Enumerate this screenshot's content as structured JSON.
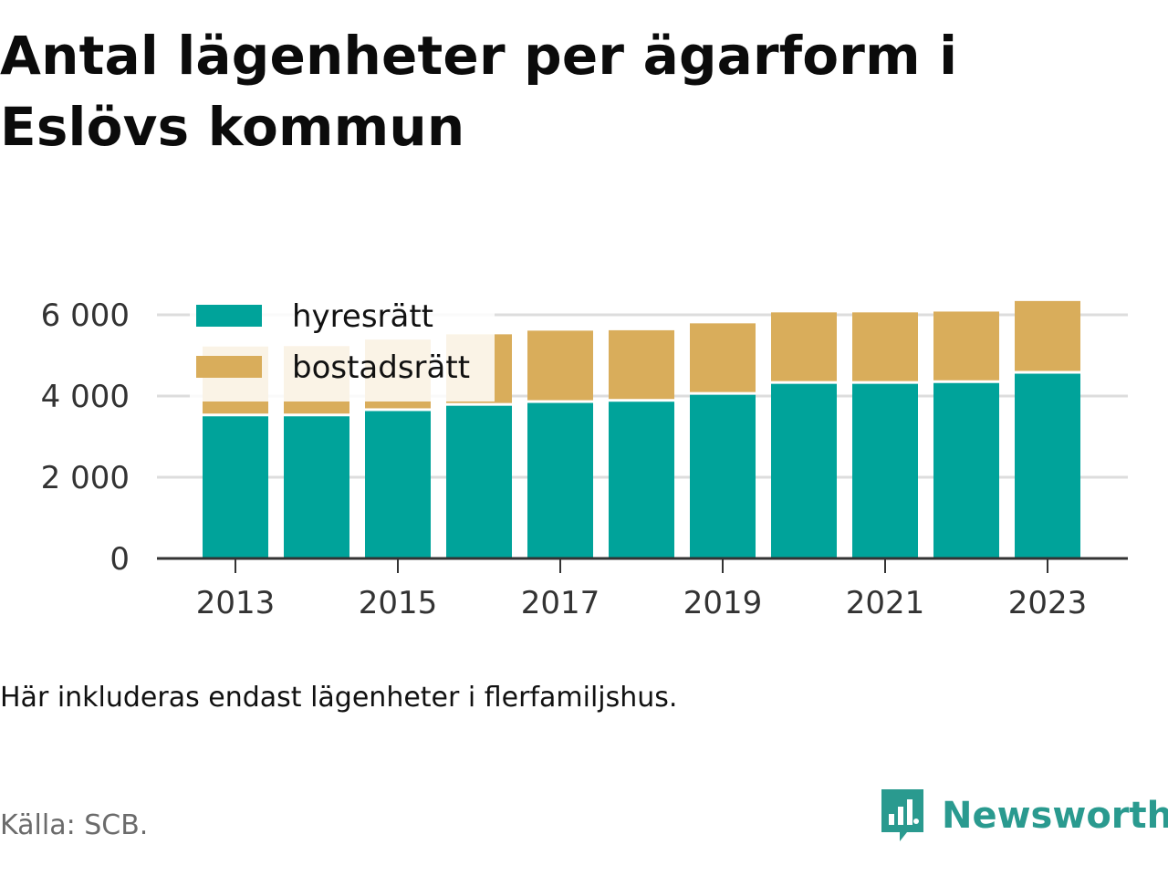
{
  "title": "Antal lägenheter per ägarform i Eslövs kommun",
  "note": "Här inkluderas endast lägenheter i flerfamiljshus.",
  "source": "Källa: SCB.",
  "brand": {
    "name": "Newsworthy",
    "icon": "chart-speech-bubble-icon",
    "color": "#2a9a8f"
  },
  "colors": {
    "hyresratt": "#00a39a",
    "bostadsratt": "#d9ad5b",
    "grid": "#dddddd",
    "axis": "#333333"
  },
  "chart_data": {
    "type": "bar",
    "stacked": true,
    "categories": [
      "2013",
      "2014",
      "2015",
      "2016",
      "2017",
      "2018",
      "2019",
      "2020",
      "2021",
      "2022",
      "2023"
    ],
    "series": [
      {
        "name": "hyresrätt",
        "values": [
          3500,
          3500,
          3630,
          3760,
          3830,
          3860,
          4030,
          4300,
          4300,
          4320,
          4550
        ]
      },
      {
        "name": "bostadsrätt",
        "values": [
          1720,
          1730,
          1760,
          1760,
          1780,
          1760,
          1760,
          1760,
          1760,
          1760,
          1790
        ]
      }
    ],
    "xticks": [
      "2013",
      "2015",
      "2017",
      "2019",
      "2021",
      "2023"
    ],
    "yticks": [
      "0",
      "2 000",
      "4 000",
      "6 000"
    ],
    "ylim": [
      0,
      6000
    ],
    "grid": true,
    "legend": "top-left"
  }
}
